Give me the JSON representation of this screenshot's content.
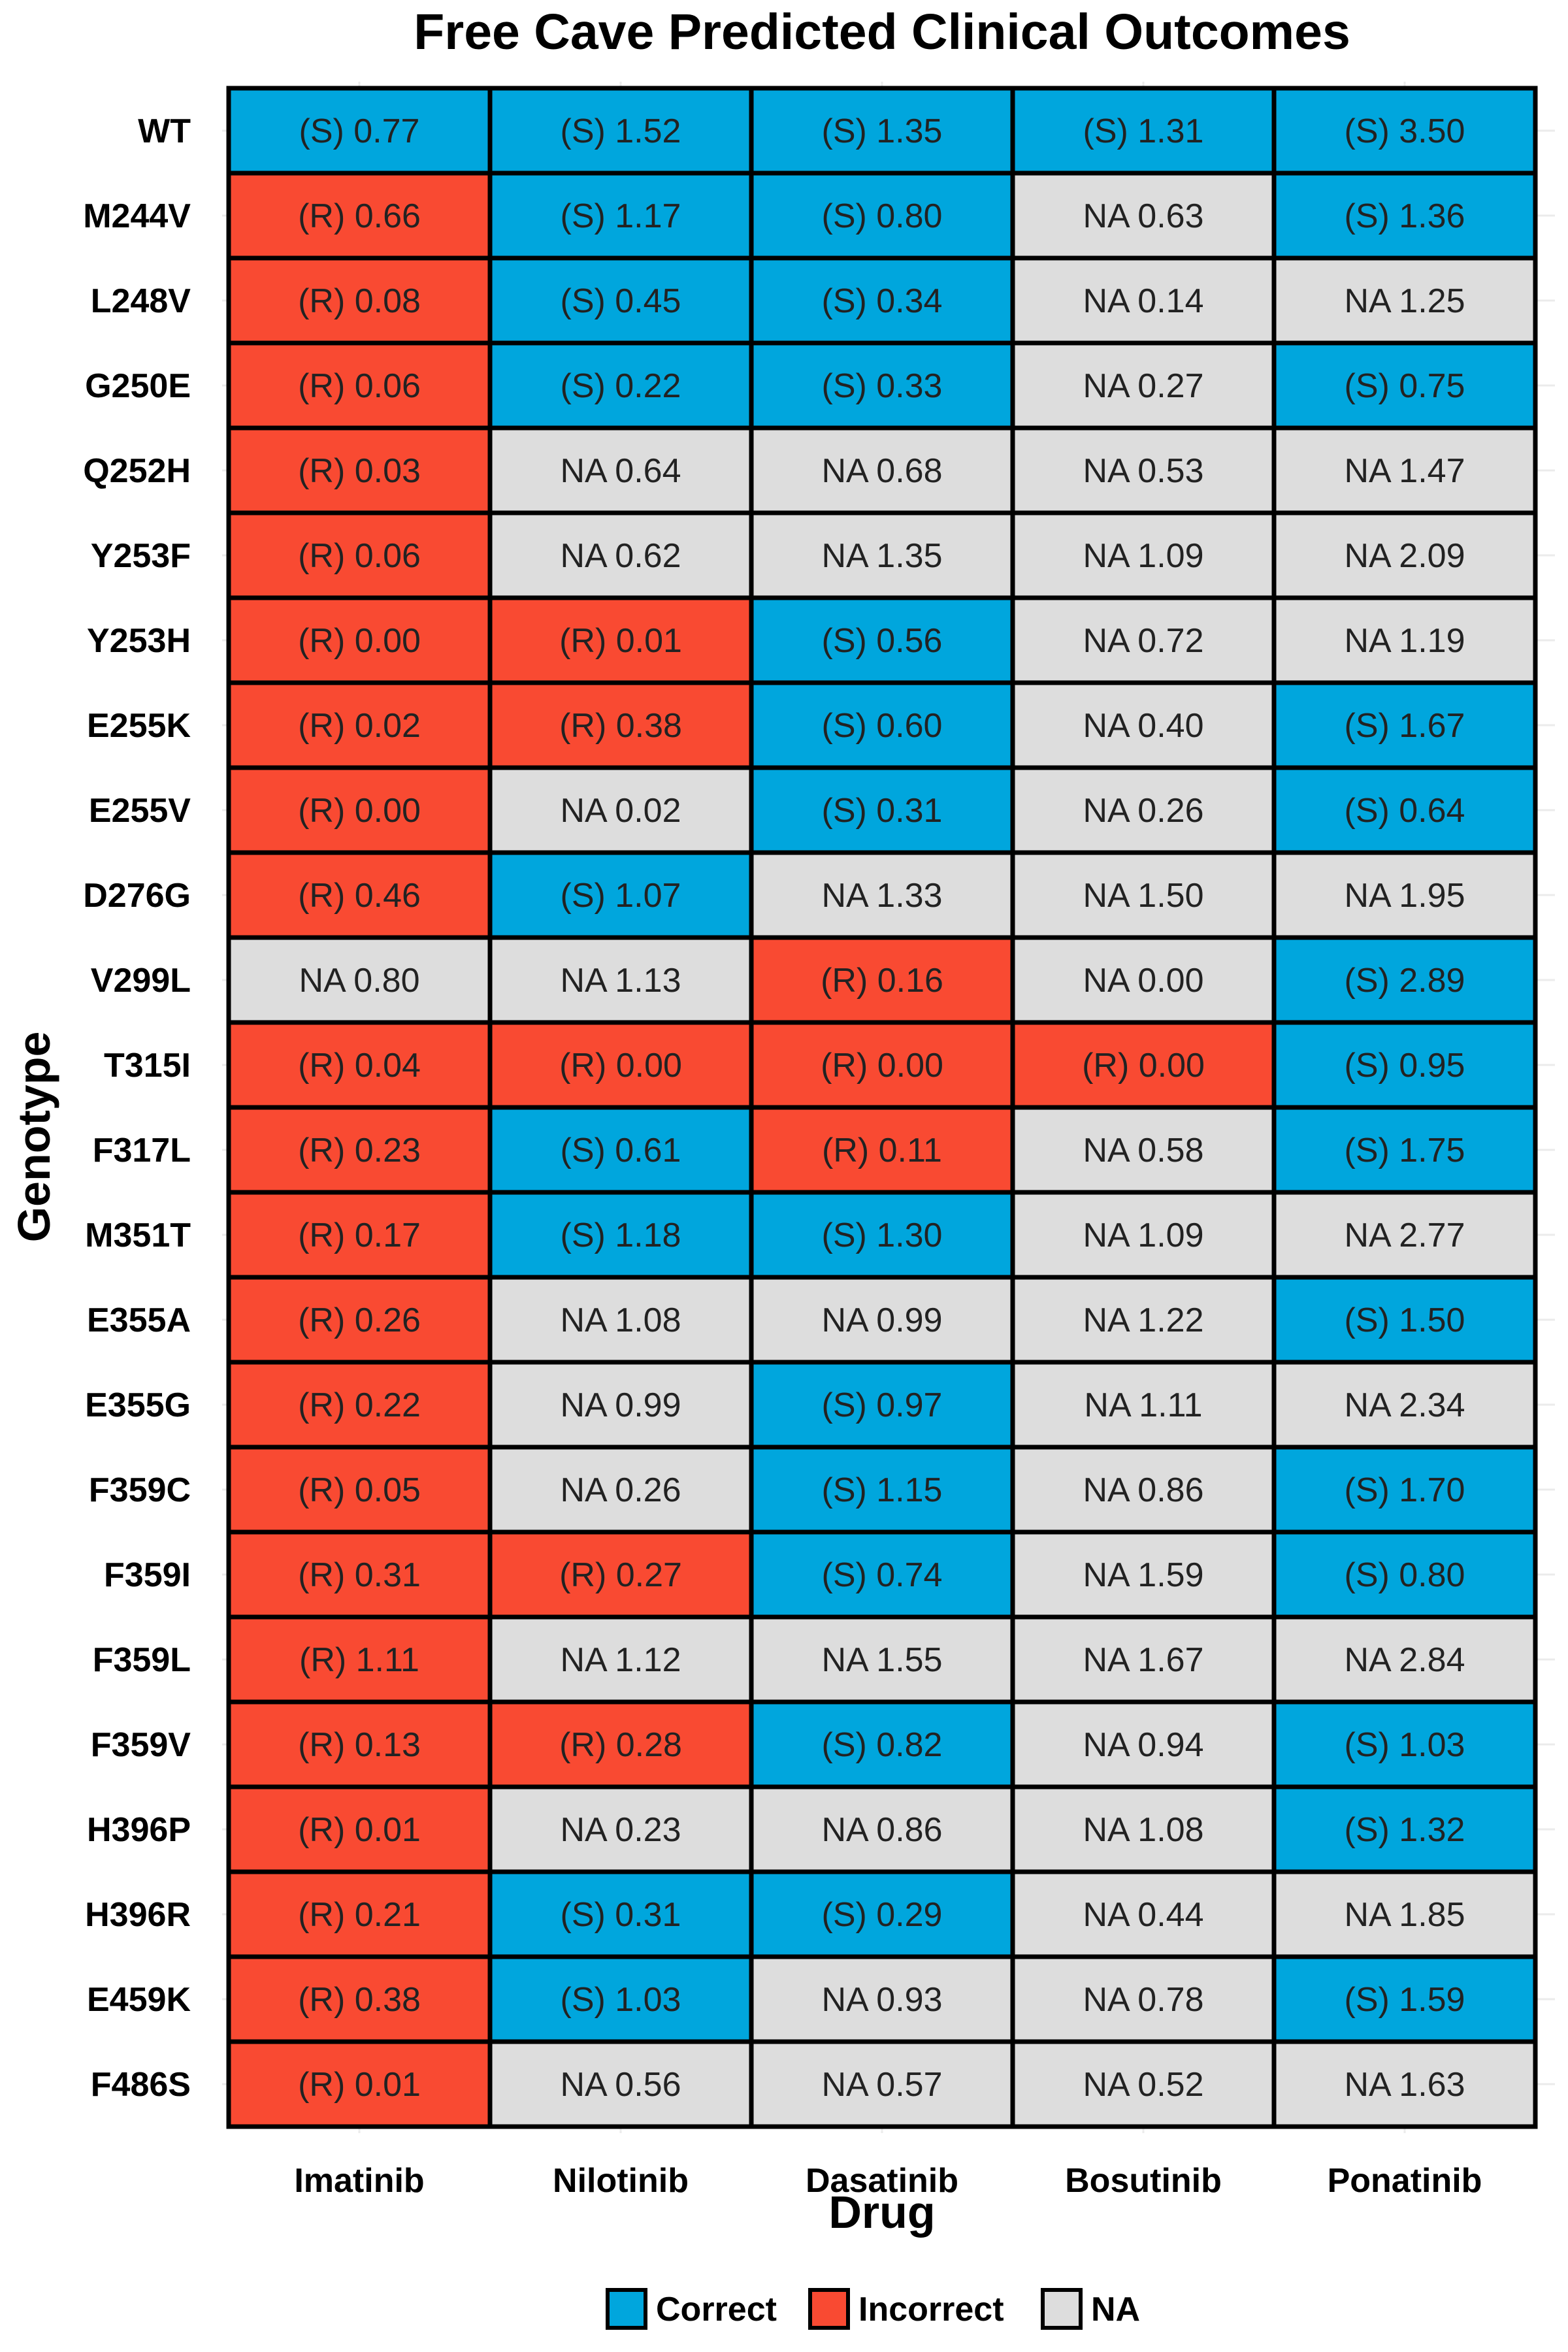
{
  "chart_data": {
    "type": "heatmap",
    "title": "Free Cave Predicted Clinical Outcomes",
    "xlabel": "Drug",
    "ylabel": "Genotype",
    "x_categories": [
      "Imatinib",
      "Nilotinib",
      "Dasatinib",
      "Bosutinib",
      "Ponatinib"
    ],
    "y_categories": [
      "WT",
      "M244V",
      "L248V",
      "G250E",
      "Q252H",
      "Y253F",
      "Y253H",
      "E255K",
      "E255V",
      "D276G",
      "V299L",
      "T315I",
      "F317L",
      "M351T",
      "E355A",
      "E355G",
      "F359C",
      "F359I",
      "F359L",
      "F359V",
      "H396P",
      "H396R",
      "E459K",
      "F486S"
    ],
    "legend": {
      "position": "bottom",
      "entries": [
        {
          "key": "correct",
          "label": "Correct",
          "color": "#00a6dd"
        },
        {
          "key": "incorrect",
          "label": "Incorrect",
          "color": "#f94a32"
        },
        {
          "key": "na",
          "label": "NA",
          "color": "#dddddd"
        }
      ]
    },
    "colors": {
      "correct": "#00a6dd",
      "incorrect": "#f94a32",
      "na": "#dddddd"
    },
    "cells": [
      [
        {
          "label": "(S) 0.77",
          "outcome": "correct"
        },
        {
          "label": "(S) 1.52",
          "outcome": "correct"
        },
        {
          "label": "(S) 1.35",
          "outcome": "correct"
        },
        {
          "label": "(S) 1.31",
          "outcome": "correct"
        },
        {
          "label": "(S) 3.50",
          "outcome": "correct"
        }
      ],
      [
        {
          "label": "(R) 0.66",
          "outcome": "incorrect"
        },
        {
          "label": "(S) 1.17",
          "outcome": "correct"
        },
        {
          "label": "(S) 0.80",
          "outcome": "correct"
        },
        {
          "label": "NA 0.63",
          "outcome": "na"
        },
        {
          "label": "(S) 1.36",
          "outcome": "correct"
        }
      ],
      [
        {
          "label": "(R) 0.08",
          "outcome": "incorrect"
        },
        {
          "label": "(S) 0.45",
          "outcome": "correct"
        },
        {
          "label": "(S) 0.34",
          "outcome": "correct"
        },
        {
          "label": "NA 0.14",
          "outcome": "na"
        },
        {
          "label": "NA 1.25",
          "outcome": "na"
        }
      ],
      [
        {
          "label": "(R) 0.06",
          "outcome": "incorrect"
        },
        {
          "label": "(S) 0.22",
          "outcome": "correct"
        },
        {
          "label": "(S) 0.33",
          "outcome": "correct"
        },
        {
          "label": "NA 0.27",
          "outcome": "na"
        },
        {
          "label": "(S) 0.75",
          "outcome": "correct"
        }
      ],
      [
        {
          "label": "(R) 0.03",
          "outcome": "incorrect"
        },
        {
          "label": "NA 0.64",
          "outcome": "na"
        },
        {
          "label": "NA 0.68",
          "outcome": "na"
        },
        {
          "label": "NA 0.53",
          "outcome": "na"
        },
        {
          "label": "NA 1.47",
          "outcome": "na"
        }
      ],
      [
        {
          "label": "(R) 0.06",
          "outcome": "incorrect"
        },
        {
          "label": "NA 0.62",
          "outcome": "na"
        },
        {
          "label": "NA 1.35",
          "outcome": "na"
        },
        {
          "label": "NA 1.09",
          "outcome": "na"
        },
        {
          "label": "NA 2.09",
          "outcome": "na"
        }
      ],
      [
        {
          "label": "(R) 0.00",
          "outcome": "incorrect"
        },
        {
          "label": "(R) 0.01",
          "outcome": "incorrect"
        },
        {
          "label": "(S) 0.56",
          "outcome": "correct"
        },
        {
          "label": "NA 0.72",
          "outcome": "na"
        },
        {
          "label": "NA 1.19",
          "outcome": "na"
        }
      ],
      [
        {
          "label": "(R) 0.02",
          "outcome": "incorrect"
        },
        {
          "label": "(R) 0.38",
          "outcome": "incorrect"
        },
        {
          "label": "(S) 0.60",
          "outcome": "correct"
        },
        {
          "label": "NA 0.40",
          "outcome": "na"
        },
        {
          "label": "(S) 1.67",
          "outcome": "correct"
        }
      ],
      [
        {
          "label": "(R) 0.00",
          "outcome": "incorrect"
        },
        {
          "label": "NA 0.02",
          "outcome": "na"
        },
        {
          "label": "(S) 0.31",
          "outcome": "correct"
        },
        {
          "label": "NA 0.26",
          "outcome": "na"
        },
        {
          "label": "(S) 0.64",
          "outcome": "correct"
        }
      ],
      [
        {
          "label": "(R) 0.46",
          "outcome": "incorrect"
        },
        {
          "label": "(S) 1.07",
          "outcome": "correct"
        },
        {
          "label": "NA 1.33",
          "outcome": "na"
        },
        {
          "label": "NA 1.50",
          "outcome": "na"
        },
        {
          "label": "NA 1.95",
          "outcome": "na"
        }
      ],
      [
        {
          "label": "NA 0.80",
          "outcome": "na"
        },
        {
          "label": "NA 1.13",
          "outcome": "na"
        },
        {
          "label": "(R) 0.16",
          "outcome": "incorrect"
        },
        {
          "label": "NA 0.00",
          "outcome": "na"
        },
        {
          "label": "(S) 2.89",
          "outcome": "correct"
        }
      ],
      [
        {
          "label": "(R) 0.04",
          "outcome": "incorrect"
        },
        {
          "label": "(R) 0.00",
          "outcome": "incorrect"
        },
        {
          "label": "(R) 0.00",
          "outcome": "incorrect"
        },
        {
          "label": "(R) 0.00",
          "outcome": "incorrect"
        },
        {
          "label": "(S) 0.95",
          "outcome": "correct"
        }
      ],
      [
        {
          "label": "(R) 0.23",
          "outcome": "incorrect"
        },
        {
          "label": "(S) 0.61",
          "outcome": "correct"
        },
        {
          "label": "(R) 0.11",
          "outcome": "incorrect"
        },
        {
          "label": "NA 0.58",
          "outcome": "na"
        },
        {
          "label": "(S) 1.75",
          "outcome": "correct"
        }
      ],
      [
        {
          "label": "(R) 0.17",
          "outcome": "incorrect"
        },
        {
          "label": "(S) 1.18",
          "outcome": "correct"
        },
        {
          "label": "(S) 1.30",
          "outcome": "correct"
        },
        {
          "label": "NA 1.09",
          "outcome": "na"
        },
        {
          "label": "NA 2.77",
          "outcome": "na"
        }
      ],
      [
        {
          "label": "(R) 0.26",
          "outcome": "incorrect"
        },
        {
          "label": "NA 1.08",
          "outcome": "na"
        },
        {
          "label": "NA 0.99",
          "outcome": "na"
        },
        {
          "label": "NA 1.22",
          "outcome": "na"
        },
        {
          "label": "(S) 1.50",
          "outcome": "correct"
        }
      ],
      [
        {
          "label": "(R) 0.22",
          "outcome": "incorrect"
        },
        {
          "label": "NA 0.99",
          "outcome": "na"
        },
        {
          "label": "(S) 0.97",
          "outcome": "correct"
        },
        {
          "label": "NA 1.11",
          "outcome": "na"
        },
        {
          "label": "NA 2.34",
          "outcome": "na"
        }
      ],
      [
        {
          "label": "(R) 0.05",
          "outcome": "incorrect"
        },
        {
          "label": "NA 0.26",
          "outcome": "na"
        },
        {
          "label": "(S) 1.15",
          "outcome": "correct"
        },
        {
          "label": "NA 0.86",
          "outcome": "na"
        },
        {
          "label": "(S) 1.70",
          "outcome": "correct"
        }
      ],
      [
        {
          "label": "(R) 0.31",
          "outcome": "incorrect"
        },
        {
          "label": "(R) 0.27",
          "outcome": "incorrect"
        },
        {
          "label": "(S) 0.74",
          "outcome": "correct"
        },
        {
          "label": "NA 1.59",
          "outcome": "na"
        },
        {
          "label": "(S) 0.80",
          "outcome": "correct"
        }
      ],
      [
        {
          "label": "(R) 1.11",
          "outcome": "incorrect"
        },
        {
          "label": "NA 1.12",
          "outcome": "na"
        },
        {
          "label": "NA 1.55",
          "outcome": "na"
        },
        {
          "label": "NA 1.67",
          "outcome": "na"
        },
        {
          "label": "NA 2.84",
          "outcome": "na"
        }
      ],
      [
        {
          "label": "(R) 0.13",
          "outcome": "incorrect"
        },
        {
          "label": "(R) 0.28",
          "outcome": "incorrect"
        },
        {
          "label": "(S) 0.82",
          "outcome": "correct"
        },
        {
          "label": "NA 0.94",
          "outcome": "na"
        },
        {
          "label": "(S) 1.03",
          "outcome": "correct"
        }
      ],
      [
        {
          "label": "(R) 0.01",
          "outcome": "incorrect"
        },
        {
          "label": "NA 0.23",
          "outcome": "na"
        },
        {
          "label": "NA 0.86",
          "outcome": "na"
        },
        {
          "label": "NA 1.08",
          "outcome": "na"
        },
        {
          "label": "(S) 1.32",
          "outcome": "correct"
        }
      ],
      [
        {
          "label": "(R) 0.21",
          "outcome": "incorrect"
        },
        {
          "label": "(S) 0.31",
          "outcome": "correct"
        },
        {
          "label": "(S) 0.29",
          "outcome": "correct"
        },
        {
          "label": "NA 0.44",
          "outcome": "na"
        },
        {
          "label": "NA 1.85",
          "outcome": "na"
        }
      ],
      [
        {
          "label": "(R) 0.38",
          "outcome": "incorrect"
        },
        {
          "label": "(S) 1.03",
          "outcome": "correct"
        },
        {
          "label": "NA 0.93",
          "outcome": "na"
        },
        {
          "label": "NA 0.78",
          "outcome": "na"
        },
        {
          "label": "(S) 1.59",
          "outcome": "correct"
        }
      ],
      [
        {
          "label": "(R) 0.01",
          "outcome": "incorrect"
        },
        {
          "label": "NA 0.56",
          "outcome": "na"
        },
        {
          "label": "NA 0.57",
          "outcome": "na"
        },
        {
          "label": "NA 0.52",
          "outcome": "na"
        },
        {
          "label": "NA 1.63",
          "outcome": "na"
        }
      ]
    ]
  }
}
